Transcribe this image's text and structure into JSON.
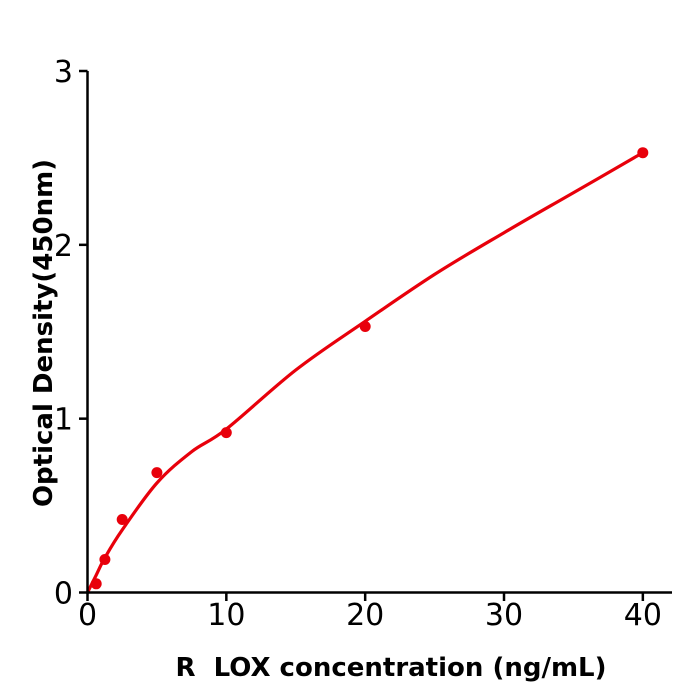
{
  "figure": {
    "background": "#ffffff",
    "axis_color": "#000000",
    "accent_red": "#e8000b"
  },
  "chart_data": {
    "type": "scatter",
    "title": "",
    "xlabel": "R  LOX concentration (ng/mL)",
    "ylabel": "Optical Density(450nm)",
    "xlim": [
      0,
      42.1
    ],
    "ylim": [
      0,
      3
    ],
    "x_ticks": [
      0,
      10,
      20,
      30,
      40
    ],
    "y_ticks": [
      0,
      1,
      2,
      3
    ],
    "grid": false,
    "legend": null,
    "series": [
      {
        "name": "standard-points",
        "type": "scatter",
        "color": "#e8000b",
        "marker_radius": 5.5,
        "x": [
          0.625,
          1.25,
          2.5,
          5,
          10,
          20,
          40
        ],
        "y": [
          0.05,
          0.19,
          0.42,
          0.69,
          0.92,
          1.53,
          2.53
        ]
      },
      {
        "name": "fit-curve",
        "type": "line",
        "color": "#e8000b",
        "line_width": 3.2,
        "x": [
          0,
          0.625,
          1.25,
          2.5,
          5,
          7.5,
          10,
          15,
          20,
          25,
          30,
          35,
          40
        ],
        "y": [
          0,
          0.1,
          0.2,
          0.36,
          0.63,
          0.81,
          0.94,
          1.28,
          1.56,
          1.83,
          2.07,
          2.3,
          2.53
        ]
      }
    ]
  }
}
